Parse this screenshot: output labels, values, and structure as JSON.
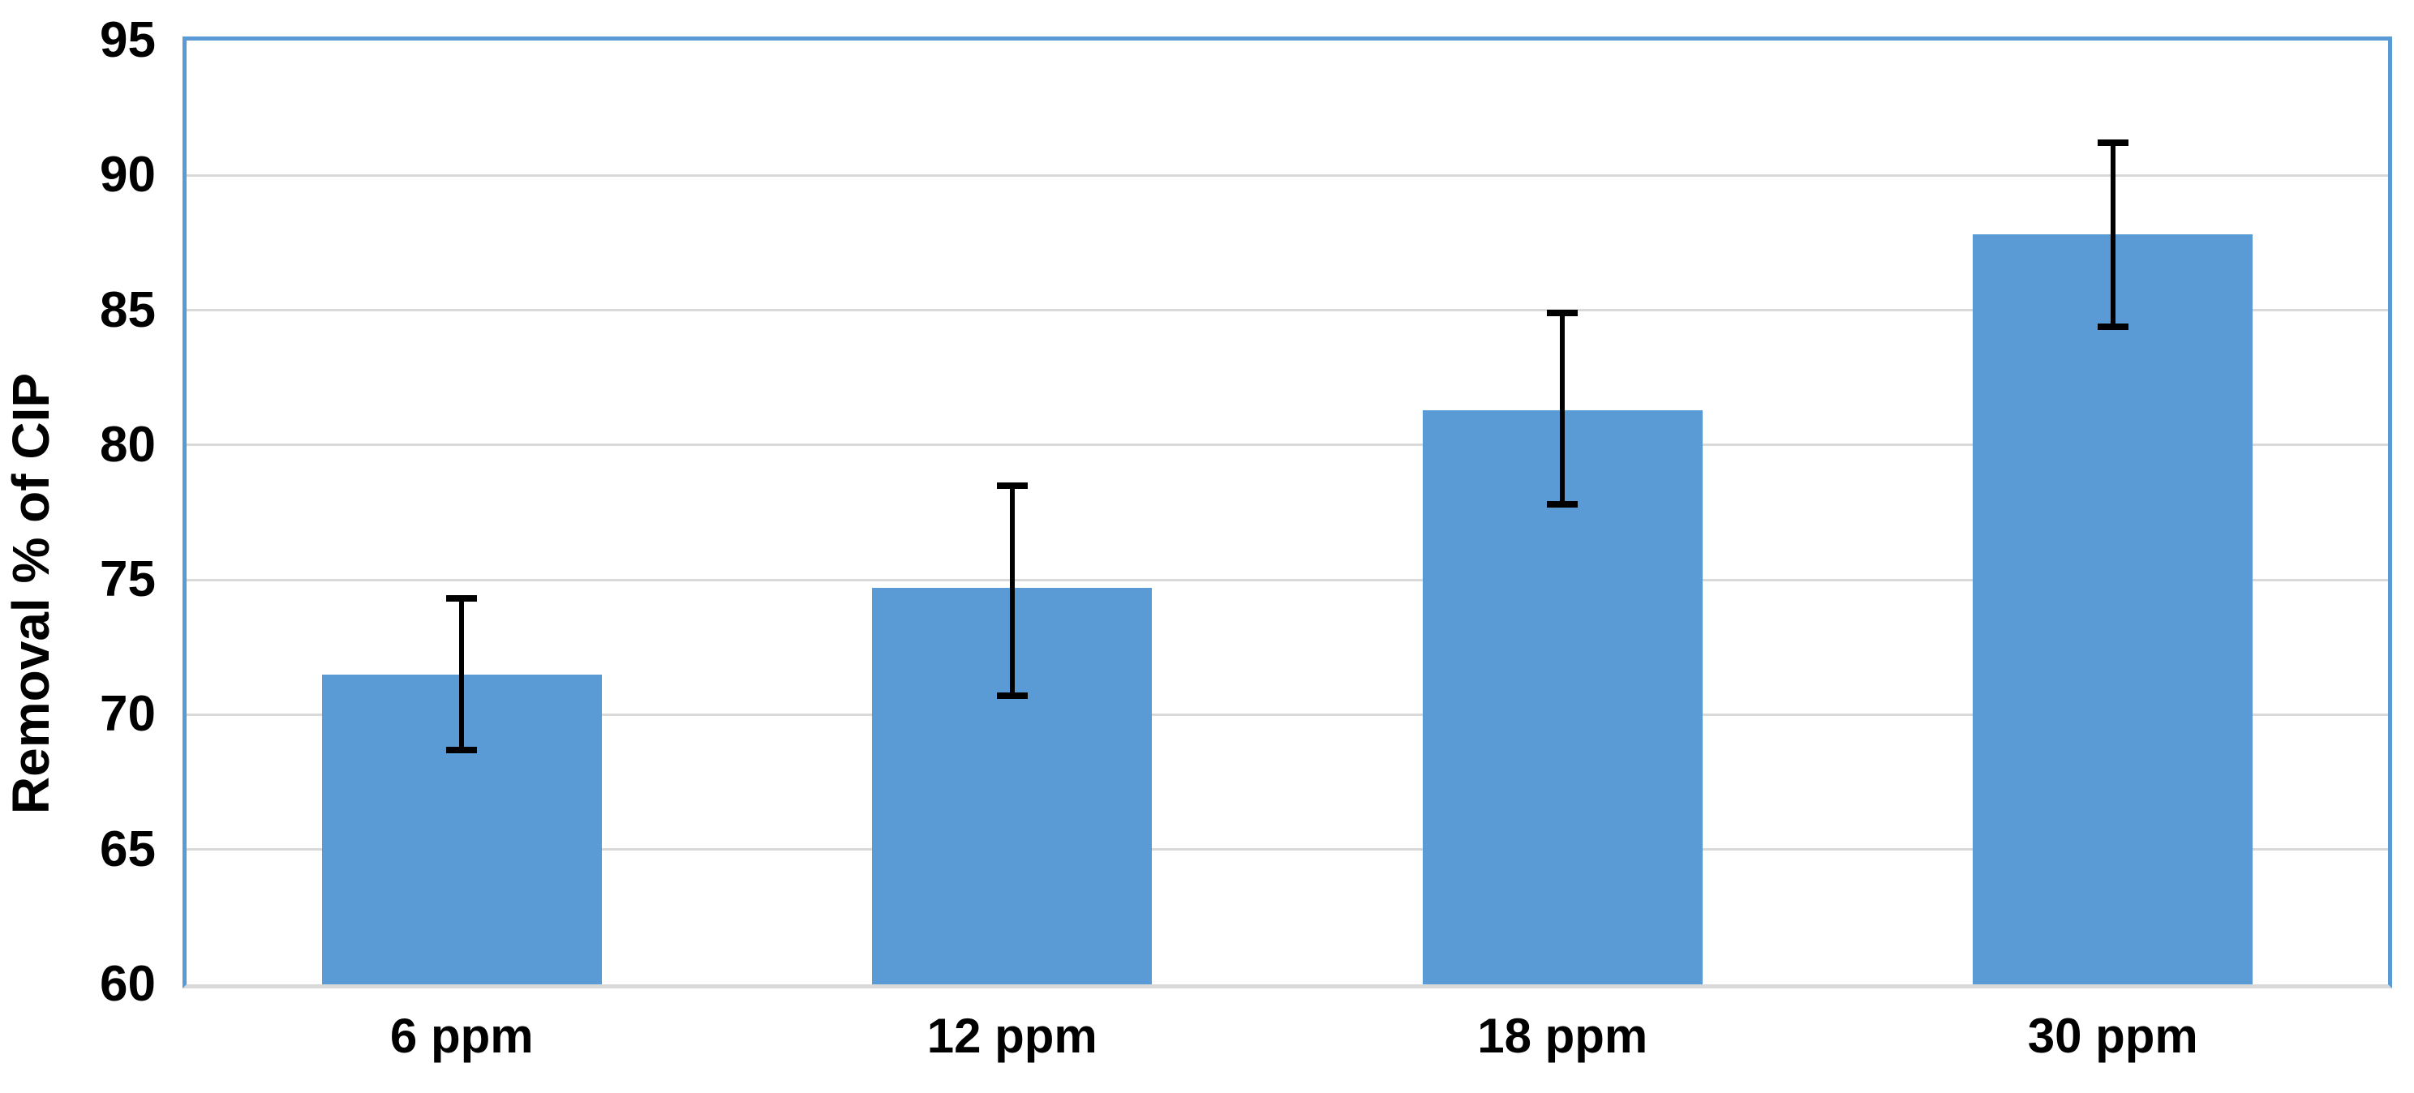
{
  "chart_data": {
    "type": "bar",
    "title": "",
    "ylabel": "Removal % of CIP",
    "xlabel": "",
    "categories": [
      "6 ppm",
      "12 ppm",
      "18 ppm",
      "30 ppm"
    ],
    "values": [
      71.5,
      74.7,
      81.3,
      87.8
    ],
    "error_low": [
      68.7,
      70.7,
      77.8,
      84.4
    ],
    "error_high": [
      74.3,
      78.5,
      84.9,
      91.2
    ],
    "ylim": [
      60,
      95
    ],
    "yticks": [
      60,
      65,
      70,
      75,
      80,
      85,
      90,
      95
    ],
    "grid": true,
    "legend": false,
    "colors": {
      "bar_fill": "#5B9BD5",
      "plot_border": "#5B9BD5",
      "gridline": "#D9D9D9",
      "axis_line": "#D9D9D9",
      "error_bar": "#000000",
      "text": "#000000",
      "background": "#FFFFFF"
    }
  }
}
